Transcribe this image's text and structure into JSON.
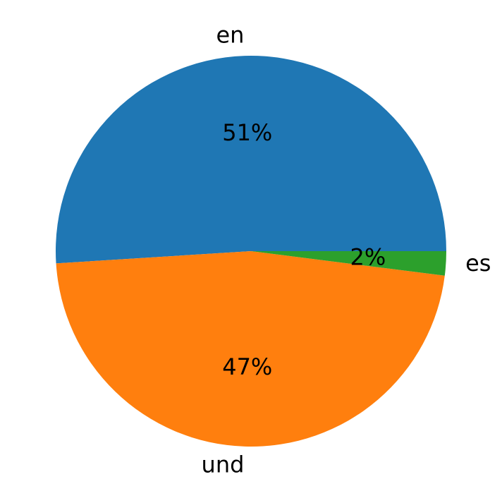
{
  "chart_data": {
    "type": "pie",
    "categories": [
      "en",
      "und",
      "es"
    ],
    "values": [
      51,
      47,
      2
    ],
    "value_labels": [
      "51%",
      "47%",
      "2%"
    ],
    "colors": [
      "#1f77b4",
      "#ff7f0e",
      "#2ca02c"
    ]
  }
}
